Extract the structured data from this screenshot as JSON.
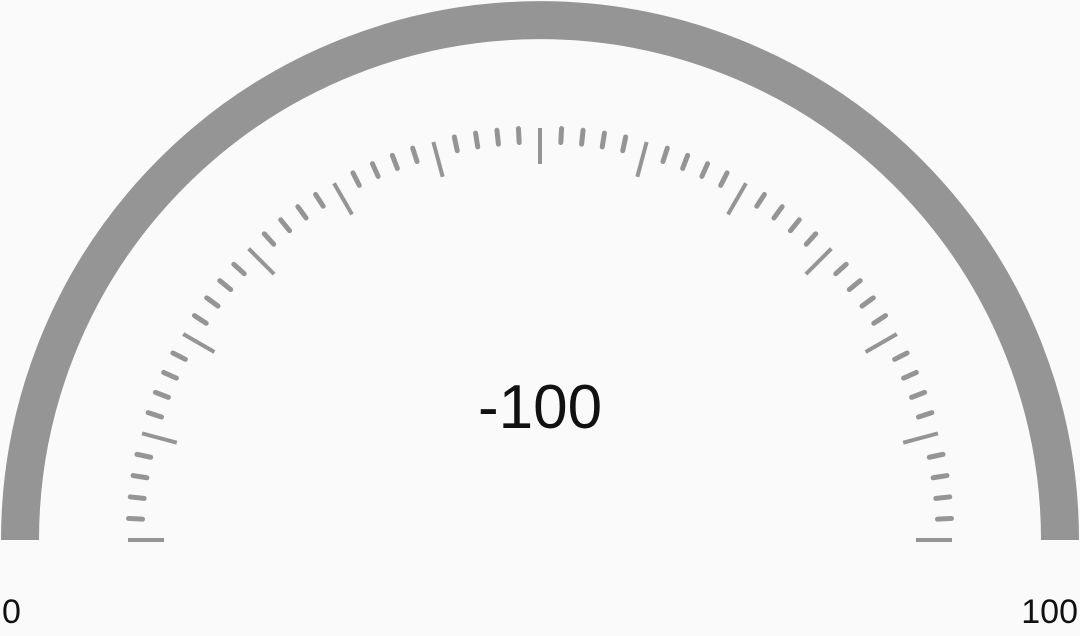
{
  "gauge": {
    "value_text": "-100",
    "value": -100,
    "min_label": "0",
    "max_label": "100",
    "min": 0,
    "max": 100,
    "arc_color": "#959595",
    "tick_color": "#959595",
    "text_color": "#111111",
    "background_color": "#fafafa"
  }
}
